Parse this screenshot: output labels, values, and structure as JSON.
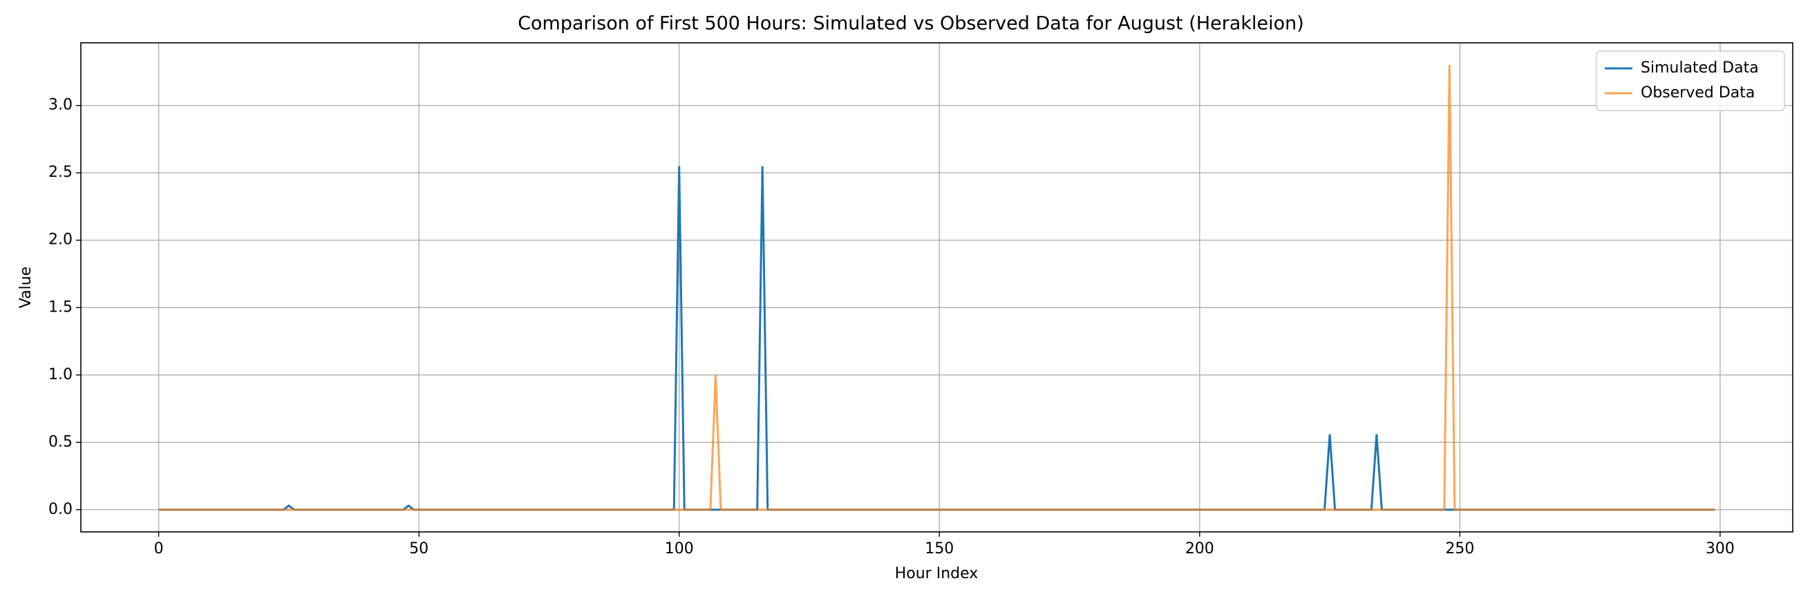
{
  "chart_data": {
    "type": "line",
    "title": "Comparison of First 500 Hours: Simulated vs Observed Data for August (Herakleion)",
    "x_label": "Hour Index",
    "y_label": "Value",
    "series": [
      {
        "name": "Simulated Data",
        "color": "#1f77b4",
        "x": [
          0,
          24,
          25,
          26,
          47,
          48,
          49,
          99,
          100,
          101,
          115,
          116,
          117,
          224,
          225,
          226,
          233,
          234,
          235,
          299
        ],
        "values": [
          0,
          0,
          0.03,
          0,
          0,
          0.03,
          0,
          0,
          2.55,
          0,
          0,
          2.55,
          0,
          0,
          0.56,
          0,
          0,
          0.56,
          0,
          0
        ]
      },
      {
        "name": "Observed Data",
        "color": "#ff7f0e",
        "x": [
          0,
          106,
          107,
          108,
          247,
          248,
          249,
          299
        ],
        "values": [
          0,
          0,
          1.0,
          0,
          0,
          3.3,
          0,
          0
        ]
      }
    ],
    "xlim": [
      -14.95,
      313.95
    ],
    "xticks": [
      0,
      50,
      100,
      150,
      200,
      250,
      300
    ],
    "ylim": [
      -0.165,
      3.465
    ],
    "yticks": [
      {
        "value": 0,
        "label": "0.0"
      },
      {
        "value": 0.5,
        "label": "0.5"
      },
      {
        "value": 1,
        "label": "1.0"
      },
      {
        "value": 1.5,
        "label": "1.5"
      },
      {
        "value": 2,
        "label": "2.0"
      },
      {
        "value": 2.5,
        "label": "2.5"
      },
      {
        "value": 3,
        "label": "3.0"
      }
    ],
    "grid": true,
    "legend": "upper right"
  }
}
